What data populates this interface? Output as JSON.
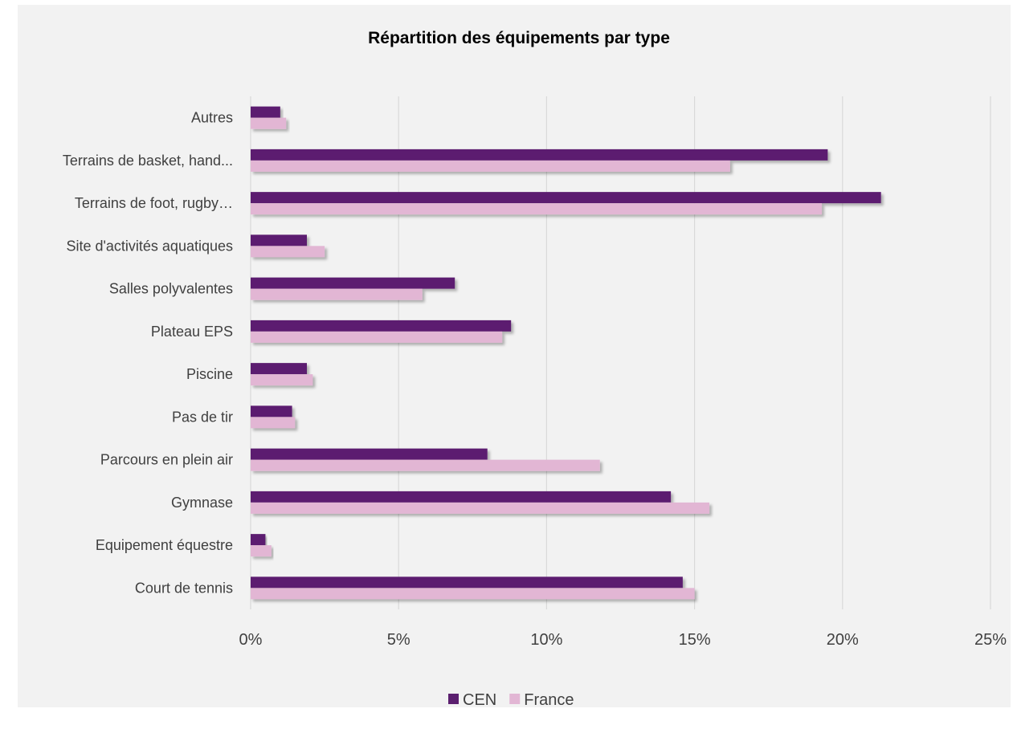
{
  "chart_data": {
    "type": "bar",
    "orientation": "horizontal",
    "title": "Répartition des équipements par type",
    "xlabel": "",
    "ylabel": "",
    "xlim": [
      0,
      25
    ],
    "x_ticks": [
      "0%",
      "5%",
      "10%",
      "15%",
      "20%",
      "25%"
    ],
    "grid": "vertical",
    "legend_position": "bottom",
    "categories": [
      "Autres",
      "Terrains de basket, hand...",
      "Terrains de foot, rugby…",
      "Site d'activités aquatiques",
      "Salles polyvalentes",
      "Plateau EPS",
      "Piscine",
      "Pas de tir",
      "Parcours en plein air",
      "Gymnase",
      "Equipement équestre",
      "Court de tennis"
    ],
    "series": [
      {
        "name": "CEN",
        "color": "#5b1f6f",
        "values": [
          1.0,
          19.5,
          21.3,
          1.9,
          6.9,
          8.8,
          1.9,
          1.4,
          8.0,
          14.2,
          0.5,
          14.6
        ]
      },
      {
        "name": "France",
        "color": "#e2b6d4",
        "values": [
          1.2,
          16.2,
          19.3,
          2.5,
          5.8,
          8.5,
          2.1,
          1.5,
          11.8,
          15.5,
          0.7,
          15.0
        ]
      }
    ]
  }
}
